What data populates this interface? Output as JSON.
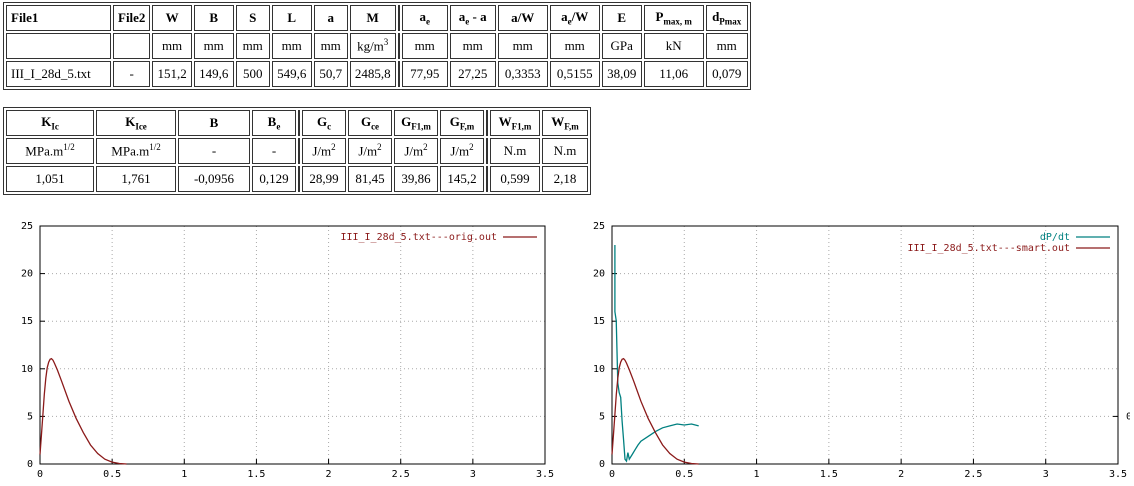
{
  "table1": {
    "headers": [
      "File1",
      "File2",
      "W",
      "B",
      "S",
      "L",
      "a",
      "M",
      "a_e",
      "a_e - a",
      "a/W",
      "a_e/W",
      "E",
      "P_max, m",
      "d_Pmax"
    ],
    "units": [
      "",
      "",
      "mm",
      "mm",
      "mm",
      "mm",
      "mm",
      "kg/m^3",
      "mm",
      "mm",
      "mm",
      "mm",
      "GPa",
      "kN",
      "mm"
    ],
    "values": [
      "III_I_28d_5.txt",
      "-",
      "151,2",
      "149,6",
      "500",
      "549,6",
      "50,7",
      "2485,8",
      "77,95",
      "27,25",
      "0,3353",
      "0,5155",
      "38,09",
      "11,06",
      "0,079"
    ]
  },
  "table2": {
    "headers": [
      "K_Ic",
      "K_Ice",
      "B",
      "B_e",
      "G_c",
      "G_ce",
      "G_F1,m",
      "G_F,m",
      "W_F1,m",
      "W_F,m"
    ],
    "units": [
      "MPa.m^1/2",
      "MPa.m^1/2",
      "-",
      "-",
      "J/m^2",
      "J/m^2",
      "J/m^2",
      "J/m^2",
      "N.m",
      "N.m"
    ],
    "values": [
      "1,051",
      "1,761",
      "-0,0956",
      "0,129",
      "28,99",
      "81,45",
      "39,86",
      "145,2",
      "0,599",
      "2,18"
    ]
  },
  "chart_data": [
    {
      "type": "line",
      "title": "",
      "xlabel": "",
      "ylabel": "",
      "xlim": [
        0,
        3.5
      ],
      "ylim": [
        0,
        25
      ],
      "xticks": [
        "0",
        "0.5",
        "1",
        "1.5",
        "2",
        "2.5",
        "3",
        "3.5"
      ],
      "yticks": [
        "0",
        "5",
        "10",
        "15",
        "20",
        "25"
      ],
      "grid": true,
      "legend_position": "top-right",
      "series": [
        {
          "name": "III_I_28d_5.txt---orig.out",
          "color": "#8b1a1a",
          "x": [
            0,
            0.01,
            0.02,
            0.03,
            0.04,
            0.05,
            0.06,
            0.07,
            0.08,
            0.09,
            0.1,
            0.12,
            0.15,
            0.2,
            0.25,
            0.3,
            0.35,
            0.4,
            0.45,
            0.5,
            0.55,
            0.6
          ],
          "y": [
            1.0,
            3.0,
            5.2,
            7.3,
            9.0,
            10.1,
            10.7,
            11.0,
            11.06,
            10.9,
            10.6,
            9.9,
            8.7,
            6.6,
            4.8,
            3.3,
            2.0,
            1.1,
            0.5,
            0.2,
            0.05,
            0
          ]
        }
      ]
    },
    {
      "type": "line",
      "title": "",
      "xlabel": "",
      "ylabel": "",
      "xlim": [
        0,
        3.5
      ],
      "ylim": [
        0,
        25
      ],
      "xticks": [
        "0",
        "0.5",
        "1",
        "1.5",
        "2",
        "2.5",
        "3",
        "3.5"
      ],
      "yticks": [
        "0",
        "5",
        "10",
        "15",
        "20",
        "25"
      ],
      "y2ticks": [
        "0"
      ],
      "grid": true,
      "legend_position": "top-right",
      "series": [
        {
          "name": "dP/dt",
          "color": "#008080",
          "x": [
            0.02,
            0.02,
            0.03,
            0.03,
            0.04,
            0.05,
            0.06,
            0.07,
            0.08,
            0.09,
            0.1,
            0.11,
            0.12,
            0.14,
            0.16,
            0.18,
            0.2,
            0.25,
            0.3,
            0.35,
            0.4,
            0.45,
            0.5,
            0.55,
            0.6
          ],
          "y": [
            23.0,
            16.0,
            15.0,
            14.8,
            8.5,
            7.5,
            7.0,
            4.5,
            2.5,
            0.5,
            0.3,
            1.2,
            0.5,
            1.0,
            1.5,
            2.0,
            2.4,
            2.9,
            3.4,
            3.8,
            4.0,
            4.2,
            4.1,
            4.2,
            4.0
          ]
        },
        {
          "name": "III_I_28d_5.txt---smart.out",
          "color": "#8b1a1a",
          "x": [
            0,
            0.01,
            0.02,
            0.03,
            0.04,
            0.05,
            0.06,
            0.07,
            0.08,
            0.09,
            0.1,
            0.12,
            0.15,
            0.2,
            0.25,
            0.3,
            0.35,
            0.4,
            0.45,
            0.5,
            0.55,
            0.6
          ],
          "y": [
            1.0,
            3.0,
            5.2,
            7.3,
            9.0,
            10.1,
            10.7,
            11.0,
            11.06,
            10.9,
            10.6,
            9.9,
            8.7,
            6.6,
            4.8,
            3.3,
            2.0,
            1.1,
            0.5,
            0.2,
            0.05,
            0
          ]
        }
      ]
    }
  ]
}
